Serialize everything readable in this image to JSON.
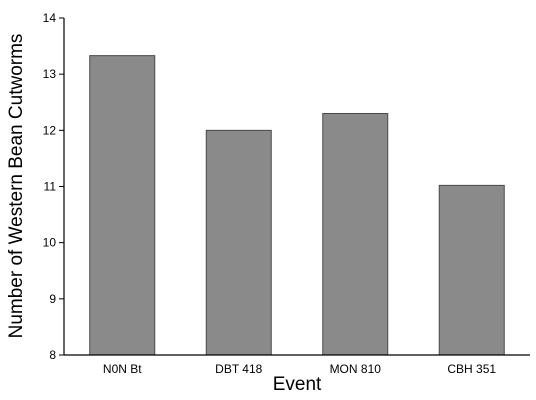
{
  "chart_data": {
    "type": "bar",
    "title": "",
    "xlabel": "Event",
    "ylabel": "Number of Western Bean Cutworms",
    "categories": [
      "N0N Bt",
      "DBT 418",
      "MON 810",
      "CBH 351"
    ],
    "values": [
      13.33,
      12.0,
      12.3,
      11.02
    ],
    "ylim": [
      8,
      14
    ],
    "yticks": [
      "8",
      "9",
      "10",
      "11",
      "12",
      "13",
      "14"
    ],
    "grid": false,
    "legend": "none",
    "colors": {
      "bar_fill": "#8a8a8a",
      "bar_stroke": "#4a4a4a",
      "axis": "#000000",
      "background": "#ffffff"
    }
  }
}
